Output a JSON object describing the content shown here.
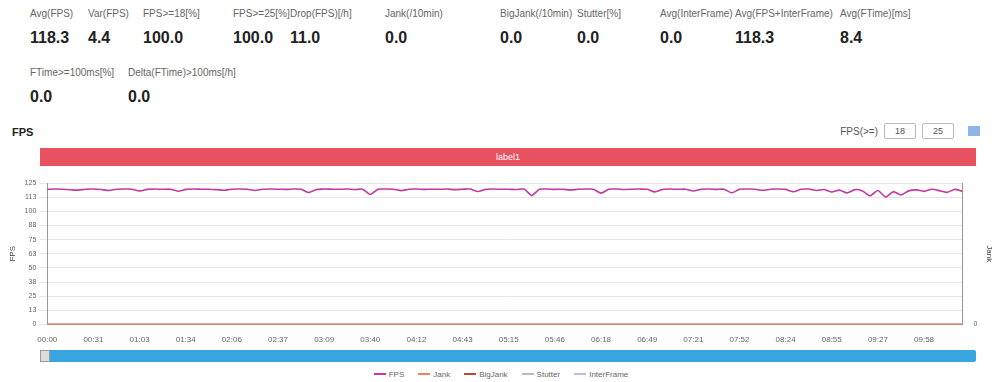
{
  "header": {
    "stats": [
      {
        "label": "Avg(FPS)",
        "value": "118.3"
      },
      {
        "label": "Var(FPS)",
        "value": "4.4"
      },
      {
        "label": "FPS>=18[%]",
        "value": "100.0"
      },
      {
        "label": "FPS>=25[%]",
        "value": "100.0"
      },
      {
        "label": "Drop(FPS)[/h]",
        "value": "11.0"
      },
      {
        "label": "Jank(/10min)",
        "value": "0.0"
      },
      {
        "label": "BigJank(/10min)",
        "value": "0.0"
      },
      {
        "label": "Stutter[%]",
        "value": "0.0"
      },
      {
        "label": "Avg(InterFrame)",
        "value": "0.0"
      },
      {
        "label": "Avg(FPS+InterFrame)",
        "value": "118.3"
      },
      {
        "label": "Avg(FTime)[ms]",
        "value": "8.4"
      },
      {
        "label": "FTime>=100ms[%]",
        "value": "0.0"
      },
      {
        "label": "Delta(FTime)>100ms[/h]",
        "value": "0.0"
      }
    ]
  },
  "panel": {
    "title": "FPS",
    "threshold_label": "FPS(>=)",
    "threshold_options": [
      "18",
      "25"
    ],
    "marker_label": "label1"
  },
  "chart_data": {
    "type": "line",
    "ylabel": "FPS",
    "y2label": "Jank",
    "grid": true,
    "legend": "bottom",
    "ylim": [
      0,
      125
    ],
    "yticks": [
      0,
      {
        "value": 12.5,
        "label": "13"
      },
      25,
      {
        "value": 37.5,
        "label": "38"
      },
      50,
      {
        "value": 62.5,
        "label": "63"
      },
      75,
      {
        "value": 87.5,
        "label": "88"
      },
      100,
      {
        "value": 112.5,
        "label": "113"
      },
      125
    ],
    "y2lim": [
      0,
      1
    ],
    "y2ticks": [
      0
    ],
    "categories": [
      "00:00",
      null,
      null,
      null,
      null,
      null,
      "00:31",
      null,
      null,
      null,
      null,
      null,
      "01:03",
      null,
      null,
      null,
      null,
      null,
      "01:34",
      null,
      null,
      null,
      null,
      null,
      "02:06",
      null,
      null,
      null,
      null,
      null,
      "02:37",
      null,
      null,
      null,
      null,
      null,
      "03:09",
      null,
      null,
      null,
      null,
      null,
      "03:40",
      null,
      null,
      null,
      null,
      null,
      "04:12",
      null,
      null,
      null,
      null,
      null,
      "04:43",
      null,
      null,
      null,
      null,
      null,
      "05:15",
      null,
      null,
      null,
      null,
      null,
      "05:46",
      null,
      null,
      null,
      null,
      null,
      "06:18",
      null,
      null,
      null,
      null,
      null,
      "06:49",
      null,
      null,
      null,
      null,
      null,
      "07:21",
      null,
      null,
      null,
      null,
      null,
      "07:52",
      null,
      null,
      null,
      null,
      null,
      "08:24",
      null,
      null,
      null,
      null,
      null,
      "08:55",
      null,
      null,
      null,
      null,
      null,
      "09:27",
      null,
      null,
      null,
      null,
      null,
      "09:58",
      null,
      null,
      null,
      null,
      null
    ],
    "series": [
      {
        "name": "FPS",
        "color": "#c2399f",
        "values": [
          119.5,
          119.8,
          119.6,
          119.2,
          118.9,
          119.7,
          119.8,
          119.4,
          118.6,
          119.6,
          119.8,
          119.7,
          118.2,
          119.5,
          119.8,
          119.6,
          119.7,
          117.9,
          119.5,
          119.8,
          119.7,
          119.6,
          119.3,
          118.8,
          119.7,
          119.8,
          119.6,
          118.5,
          119.6,
          119.8,
          119.7,
          119.5,
          119.8,
          119.6,
          116.8,
          119.5,
          119.8,
          119.7,
          119.6,
          119.8,
          119.4,
          119.7,
          115.2,
          119.6,
          119.8,
          119.7,
          118.4,
          119.6,
          119.8,
          119.5,
          119.7,
          119.6,
          119.8,
          119.3,
          119.7,
          119.8,
          117.6,
          119.5,
          119.8,
          119.6,
          119.7,
          119.4,
          119.8,
          114.1,
          119.6,
          119.8,
          119.5,
          119.7,
          118.9,
          119.6,
          119.8,
          119.7,
          116.2,
          119.6,
          119.8,
          119.4,
          119.7,
          119.8,
          119.6,
          117.3,
          119.5,
          119.8,
          119.6,
          119.7,
          118.1,
          119.6,
          119.8,
          119.5,
          119.7,
          116.5,
          119.6,
          119.8,
          119.7,
          118.7,
          119.6,
          119.8,
          119.5,
          117.4,
          119.6,
          119.8,
          118.6,
          119.4,
          117.2,
          118.9,
          116.4,
          119.3,
          118.1,
          113.9,
          118.6,
          112.8,
          117.5,
          114.6,
          118.2,
          119.1,
          117.8,
          119.6,
          118.4,
          116.9,
          119.5,
          117.7
        ]
      },
      {
        "name": "Jank",
        "color": "#f0864a",
        "axis": "y2",
        "values": [
          0,
          0,
          0,
          0,
          0,
          0,
          0,
          0,
          0,
          0,
          0,
          0,
          0,
          0,
          0,
          0,
          0,
          0,
          0,
          0,
          0,
          0,
          0,
          0,
          0,
          0,
          0,
          0,
          0,
          0,
          0,
          0,
          0,
          0,
          0,
          0,
          0,
          0,
          0,
          0,
          0,
          0,
          0,
          0,
          0,
          0,
          0,
          0,
          0,
          0,
          0,
          0,
          0,
          0,
          0,
          0,
          0,
          0,
          0,
          0,
          0,
          0,
          0,
          0,
          0,
          0,
          0,
          0,
          0,
          0,
          0,
          0,
          0,
          0,
          0,
          0,
          0,
          0,
          0,
          0,
          0,
          0,
          0,
          0,
          0,
          0,
          0,
          0,
          0,
          0,
          0,
          0,
          0,
          0,
          0,
          0,
          0,
          0,
          0,
          0,
          0,
          0,
          0,
          0,
          0,
          0,
          0,
          0,
          0,
          0,
          0,
          0,
          0,
          0,
          0,
          0,
          0,
          0,
          0,
          0
        ]
      },
      {
        "name": "BigJank",
        "color": "#b0503a",
        "axis": "y2",
        "values": [
          0,
          0,
          0,
          0,
          0,
          0,
          0,
          0,
          0,
          0,
          0,
          0,
          0,
          0,
          0,
          0,
          0,
          0,
          0,
          0,
          0,
          0,
          0,
          0,
          0,
          0,
          0,
          0,
          0,
          0,
          0,
          0,
          0,
          0,
          0,
          0,
          0,
          0,
          0,
          0,
          0,
          0,
          0,
          0,
          0,
          0,
          0,
          0,
          0,
          0,
          0,
          0,
          0,
          0,
          0,
          0,
          0,
          0,
          0,
          0,
          0,
          0,
          0,
          0,
          0,
          0,
          0,
          0,
          0,
          0,
          0,
          0,
          0,
          0,
          0,
          0,
          0,
          0,
          0,
          0,
          0,
          0,
          0,
          0,
          0,
          0,
          0,
          0,
          0,
          0,
          0,
          0,
          0,
          0,
          0,
          0,
          0,
          0,
          0,
          0,
          0,
          0,
          0,
          0,
          0,
          0,
          0,
          0,
          0,
          0,
          0,
          0,
          0,
          0,
          0,
          0,
          0,
          0,
          0,
          0
        ]
      },
      {
        "name": "Stutter",
        "color": "#b9b9c8",
        "axis": "y2",
        "values": [
          0,
          0,
          0,
          0,
          0,
          0,
          0,
          0,
          0,
          0,
          0,
          0,
          0,
          0,
          0,
          0,
          0,
          0,
          0,
          0,
          0,
          0,
          0,
          0,
          0,
          0,
          0,
          0,
          0,
          0,
          0,
          0,
          0,
          0,
          0,
          0,
          0,
          0,
          0,
          0,
          0,
          0,
          0,
          0,
          0,
          0,
          0,
          0,
          0,
          0,
          0,
          0,
          0,
          0,
          0,
          0,
          0,
          0,
          0,
          0,
          0,
          0,
          0,
          0,
          0,
          0,
          0,
          0,
          0,
          0,
          0,
          0,
          0,
          0,
          0,
          0,
          0,
          0,
          0,
          0,
          0,
          0,
          0,
          0,
          0,
          0,
          0,
          0,
          0,
          0,
          0,
          0,
          0,
          0,
          0,
          0,
          0,
          0,
          0,
          0,
          0,
          0,
          0,
          0,
          0,
          0,
          0,
          0,
          0,
          0,
          0,
          0,
          0,
          0,
          0,
          0,
          0,
          0,
          0,
          0
        ]
      },
      {
        "name": "InterFrame",
        "color": "#c9b6e4",
        "axis": "y2",
        "values": [
          0,
          0,
          0,
          0,
          0,
          0,
          0,
          0,
          0,
          0,
          0,
          0,
          0,
          0,
          0,
          0,
          0,
          0,
          0,
          0,
          0,
          0,
          0,
          0,
          0,
          0,
          0,
          0,
          0,
          0,
          0,
          0,
          0,
          0,
          0,
          0,
          0,
          0,
          0,
          0,
          0,
          0,
          0,
          0,
          0,
          0,
          0,
          0,
          0,
          0,
          0,
          0,
          0,
          0,
          0,
          0,
          0,
          0,
          0,
          0,
          0,
          0,
          0,
          0,
          0,
          0,
          0,
          0,
          0,
          0,
          0,
          0,
          0,
          0,
          0,
          0,
          0,
          0,
          0,
          0,
          0,
          0,
          0,
          0,
          0,
          0,
          0,
          0,
          0,
          0,
          0,
          0,
          0,
          0,
          0,
          0,
          0,
          0,
          0,
          0,
          0,
          0,
          0,
          0,
          0,
          0,
          0,
          0,
          0,
          0,
          0,
          0,
          0,
          0,
          0,
          0,
          0,
          0,
          0,
          0
        ]
      }
    ]
  }
}
